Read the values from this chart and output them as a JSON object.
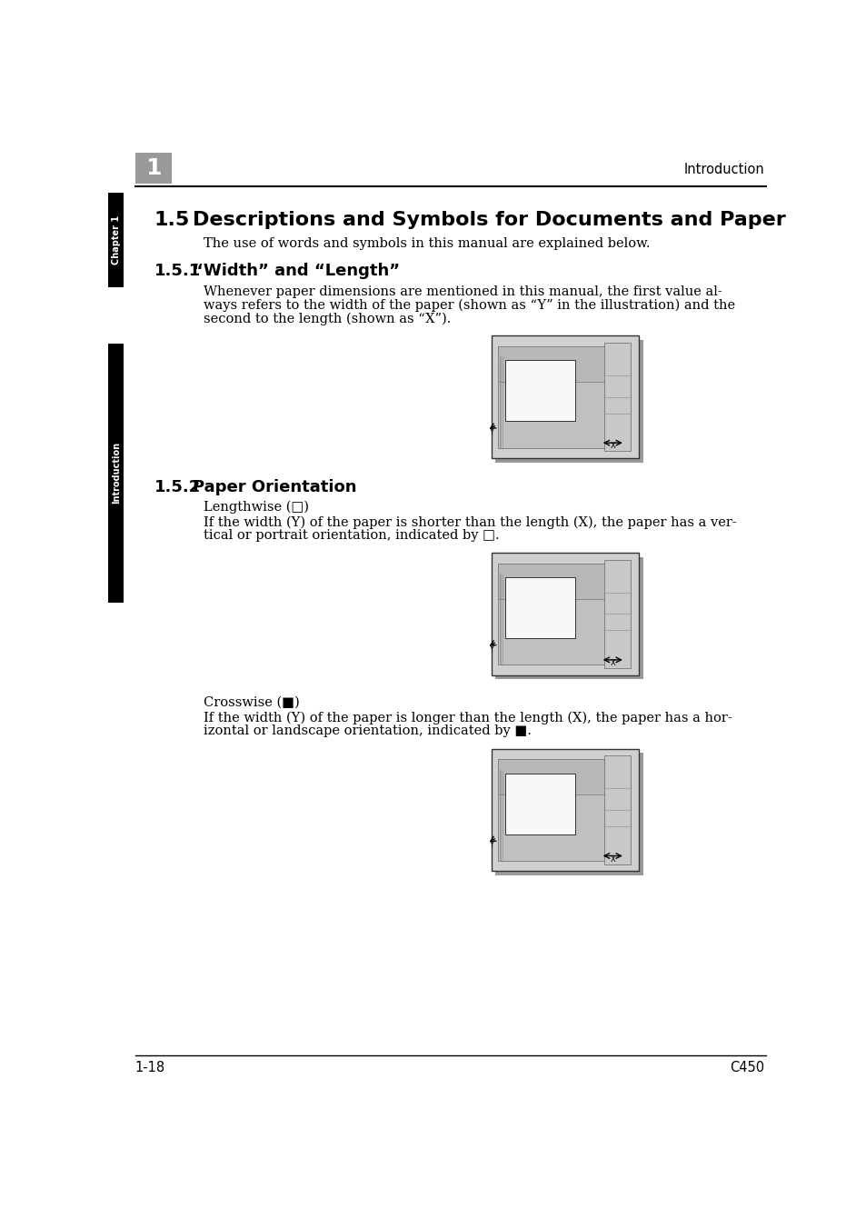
{
  "bg_color": "#ffffff",
  "page_width": 9.54,
  "page_height": 13.52,
  "dpi": 100,
  "header_right_text": "Introduction",
  "footer_left_text": "1-18",
  "footer_right_text": "C450",
  "left_tab_chapter_label": "Chapter 1",
  "left_tab_intro_label": "Introduction",
  "section_number": "1.5",
  "section_title": "Descriptions and Symbols for Documents and Paper",
  "section_title_fontsize": 16,
  "intro_text": "The use of words and symbols in this manual are explained below.",
  "body_fontsize": 10.5,
  "subsection1_number": "1.5.1",
  "subsection1_title": "“Width” and “Length”",
  "subsection1_fontsize": 13,
  "body1_lines": [
    "Whenever paper dimensions are mentioned in this manual, the first value al-",
    "ways refers to the width of the paper (shown as “Y” in the illustration) and the",
    "second to the length (shown as “X”)."
  ],
  "subsection2_number": "1.5.2",
  "subsection2_title": "Paper Orientation",
  "subsection2_fontsize": 13,
  "lengthwise_text": "Lengthwise (□)",
  "body2_lines": [
    "If the width (Y) of the paper is shorter than the length (X), the paper has a ver-",
    "tical or portrait orientation, indicated by □."
  ],
  "crosswise_text": "Crosswise (■)",
  "body3_lines": [
    "If the width (Y) of the paper is longer than the length (X), the paper has a hor-",
    "izontal or landscape orientation, indicated by ■."
  ]
}
